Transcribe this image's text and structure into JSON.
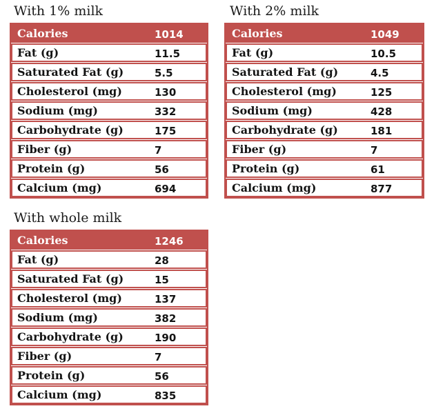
{
  "colors": {
    "accent": "#c0504d",
    "header_text": "#ffffff",
    "body_text": "#141414",
    "title_text": "#1b1b1b",
    "background": "#ffffff"
  },
  "tables": [
    {
      "id": "milk-1-percent",
      "title": "With 1% milk",
      "header": {
        "label": "Calories",
        "value": "1014"
      },
      "rows": [
        {
          "label": "Fat (g)",
          "value": "11.5"
        },
        {
          "label": "Saturated Fat (g)",
          "value": "5.5"
        },
        {
          "label": "Cholesterol (mg)",
          "value": "130"
        },
        {
          "label": "Sodium (mg)",
          "value": "332"
        },
        {
          "label": "Carbohydrate (g)",
          "value": "175"
        },
        {
          "label": "Fiber (g)",
          "value": "7"
        },
        {
          "label": "Protein (g)",
          "value": "56"
        },
        {
          "label": "Calcium (mg)",
          "value": "694"
        }
      ]
    },
    {
      "id": "milk-2-percent",
      "title": "With 2% milk",
      "header": {
        "label": "Calories",
        "value": "1049"
      },
      "rows": [
        {
          "label": "Fat (g)",
          "value": "10.5"
        },
        {
          "label": "Saturated Fat (g)",
          "value": "4.5"
        },
        {
          "label": "Cholesterol (mg)",
          "value": "125"
        },
        {
          "label": "Sodium (mg)",
          "value": "428"
        },
        {
          "label": "Carbohydrate (g)",
          "value": "181"
        },
        {
          "label": "Fiber (g)",
          "value": "7"
        },
        {
          "label": "Protein (g)",
          "value": "61"
        },
        {
          "label": "Calcium (mg)",
          "value": "877"
        }
      ]
    },
    {
      "id": "milk-whole",
      "title": "With whole milk",
      "header": {
        "label": "Calories",
        "value": "1246"
      },
      "rows": [
        {
          "label": "Fat (g)",
          "value": "28"
        },
        {
          "label": "Saturated Fat (g)",
          "value": "15"
        },
        {
          "label": "Cholesterol (mg)",
          "value": "137"
        },
        {
          "label": "Sodium (mg)",
          "value": "382"
        },
        {
          "label": "Carbohydrate (g)",
          "value": "190"
        },
        {
          "label": "Fiber (g)",
          "value": "7"
        },
        {
          "label": "Protein (g)",
          "value": "56"
        },
        {
          "label": "Calcium (mg)",
          "value": "835"
        }
      ]
    }
  ]
}
